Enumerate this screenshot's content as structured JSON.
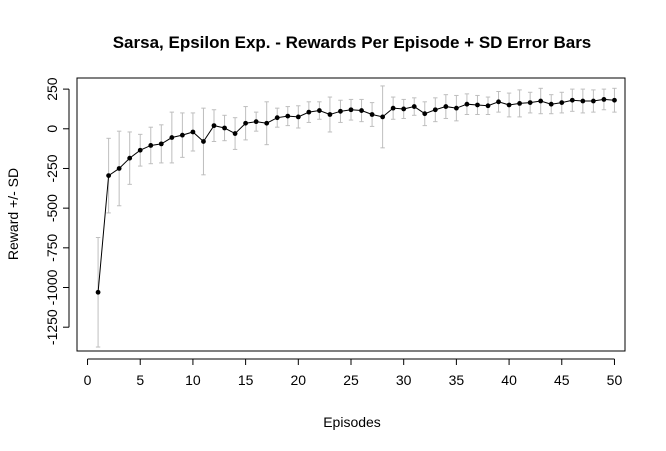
{
  "chart_data": {
    "type": "line",
    "title": "Sarsa, Epsilon Exp. - Rewards Per Episode + SD Error Bars",
    "xlabel": "Episodes",
    "ylabel": "Reward +/- SD",
    "xlim": [
      -1,
      51
    ],
    "ylim": [
      -1400,
      320
    ],
    "xticks": [
      0,
      5,
      10,
      15,
      20,
      25,
      30,
      35,
      40,
      45,
      50
    ],
    "xtick_labels": [
      "0",
      "5",
      "10",
      "15",
      "20",
      "25",
      "30",
      "35",
      "40",
      "45",
      "50"
    ],
    "yticks": [
      250,
      0,
      -250,
      -500,
      -750,
      -1000,
      -1250
    ],
    "ytick_labels": [
      "250",
      "0",
      "-250",
      "-500",
      "-750",
      "-1000",
      "-1250"
    ],
    "grid": false,
    "colors": {
      "line": "#000000",
      "point": "#000000",
      "error_bar": "#bebebe"
    },
    "series": [
      {
        "x": [
          1,
          2,
          3,
          4,
          5,
          6,
          7,
          8,
          9,
          10,
          11,
          12,
          13,
          14,
          15,
          16,
          17,
          18,
          19,
          20,
          21,
          22,
          23,
          24,
          25,
          26,
          27,
          28,
          29,
          30,
          31,
          32,
          33,
          34,
          35,
          36,
          37,
          38,
          39,
          40,
          41,
          42,
          43,
          44,
          45,
          46,
          47,
          48,
          49,
          50
        ],
        "values": [
          -1030,
          -295,
          -250,
          -185,
          -135,
          -105,
          -95,
          -55,
          -40,
          -20,
          -80,
          20,
          5,
          -30,
          35,
          45,
          35,
          70,
          80,
          75,
          105,
          115,
          90,
          110,
          120,
          115,
          90,
          75,
          130,
          125,
          140,
          95,
          120,
          140,
          130,
          155,
          150,
          145,
          170,
          150,
          160,
          165,
          175,
          155,
          165,
          180,
          175,
          175,
          185,
          180
        ],
        "sd": [
          345,
          235,
          235,
          165,
          100,
          115,
          120,
          160,
          140,
          120,
          210,
          100,
          80,
          100,
          105,
          60,
          135,
          60,
          60,
          70,
          65,
          55,
          110,
          70,
          65,
          70,
          75,
          195,
          70,
          60,
          55,
          75,
          75,
          75,
          80,
          65,
          60,
          55,
          65,
          75,
          85,
          65,
          80,
          60,
          65,
          70,
          75,
          70,
          65,
          75
        ]
      }
    ]
  }
}
